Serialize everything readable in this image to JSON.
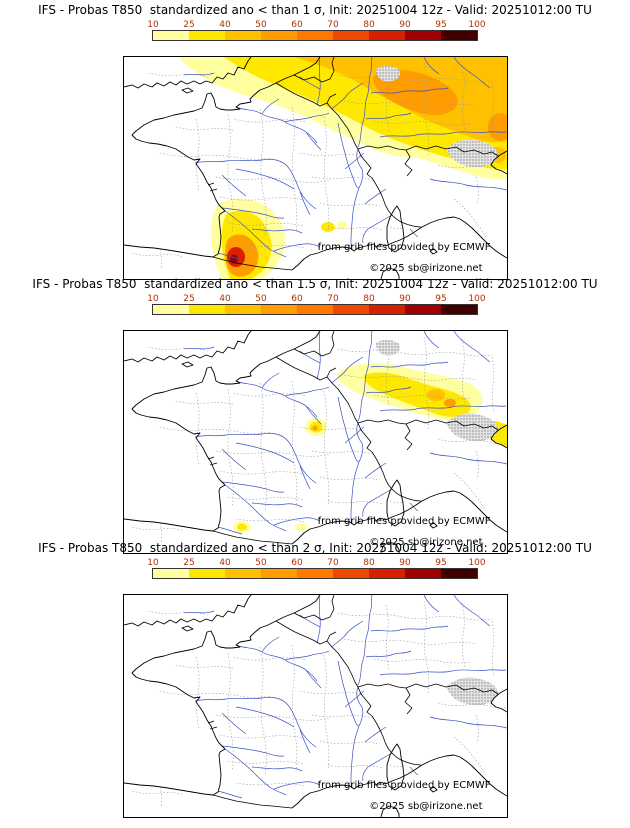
{
  "page": {
    "background": "#ffffff"
  },
  "colorbar": {
    "ticks": [
      "10",
      "25",
      "40",
      "50",
      "60",
      "70",
      "80",
      "90",
      "95",
      "100"
    ],
    "segment_colors": [
      "#ffffa0",
      "#ffe800",
      "#ffc000",
      "#ff9c00",
      "#ff7800",
      "#f04800",
      "#d82000",
      "#a00000",
      "#400000"
    ],
    "tick_color": "#b03000",
    "units": "%"
  },
  "palette": {
    "p10": "#ffffa0",
    "p25": "#ffe800",
    "p40": "#ffc000",
    "p50": "#ff9c00",
    "p60": "#ff7800",
    "p70": "#f04800",
    "p80": "#d82000",
    "p90": "#a00000",
    "p95": "#400000",
    "terrain_mask": "#9a9a9a",
    "river": "#3a52c4",
    "coast": "#000000",
    "admin": "#999999"
  },
  "panels": [
    {
      "id": "lt-1-sigma",
      "title": "IFS - Probas T850  standardized ano < than 1 σ, Init: 20251004 12z - Valid: 20251012:00 TU",
      "threshold": "1 σ",
      "attribution": "from grib files provided by ECMWF",
      "copyright": "©2025 sb@irizone.net",
      "shading_summary": "Yellow-orange band over northern France, Benelux and Germany (up to ~70%); orange-red maximum over the south-west Massif Central (up to ~90%); small yellow spots near the Mediterranean coast and NE Italy."
    },
    {
      "id": "lt-1.5-sigma",
      "title": "IFS - Probas T850  standardized ano < than 1.5 σ, Init: 20251004 12z - Valid: 20251012:00 TU",
      "threshold": "1.5 σ",
      "attribution": "from grib files provided by ECMWF",
      "copyright": "©2025 sb@irizone.net",
      "shading_summary": "Yellow patches over southern Germany and Switzerland (up to ~60%); small spots over the Jura, the Po valley edge and south-west France."
    },
    {
      "id": "lt-2-sigma",
      "title": "IFS - Probas T850  standardized ano < than 2 σ, Init: 20251004 12z - Valid: 20251012:00 TU",
      "threshold": "2 σ",
      "attribution": "from grib files provided by ECMWF",
      "copyright": "©2025 sb@irizone.net",
      "shading_summary": "No shaded probability areas."
    }
  ]
}
